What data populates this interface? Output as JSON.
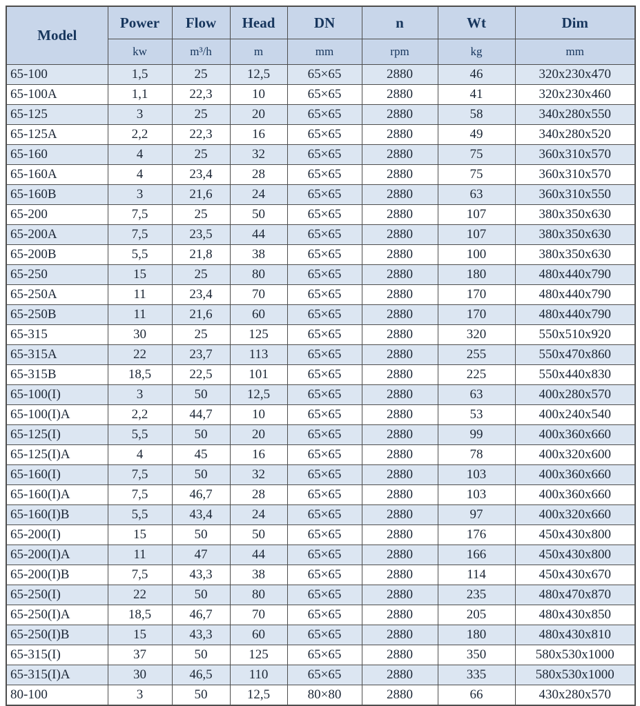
{
  "colors": {
    "header_bg": "#c8d6ea",
    "stripe_bg": "#dce6f2",
    "border": "#4d4d4d",
    "text": "#17365d"
  },
  "table": {
    "columns": [
      {
        "key": "model",
        "label": "Model",
        "unit": ""
      },
      {
        "key": "power",
        "label": "Power",
        "unit": "kw"
      },
      {
        "key": "flow",
        "label": "Flow",
        "unit": "m³/h"
      },
      {
        "key": "head",
        "label": "Head",
        "unit": "m"
      },
      {
        "key": "dn",
        "label": "DN",
        "unit": "mm"
      },
      {
        "key": "n",
        "label": "n",
        "unit": "rpm"
      },
      {
        "key": "wt",
        "label": "Wt",
        "unit": "kg"
      },
      {
        "key": "dim",
        "label": "Dim",
        "unit": "mm"
      }
    ],
    "rows": [
      [
        "65-100",
        "1,5",
        "25",
        "12,5",
        "65×65",
        "2880",
        "46",
        "320x230x470"
      ],
      [
        "65-100A",
        "1,1",
        "22,3",
        "10",
        "65×65",
        "2880",
        "41",
        "320x230x460"
      ],
      [
        "65-125",
        "3",
        "25",
        "20",
        "65×65",
        "2880",
        "58",
        "340x280x550"
      ],
      [
        "65-125A",
        "2,2",
        "22,3",
        "16",
        "65×65",
        "2880",
        "49",
        "340x280x520"
      ],
      [
        "65-160",
        "4",
        "25",
        "32",
        "65×65",
        "2880",
        "75",
        "360x310x570"
      ],
      [
        "65-160A",
        "4",
        "23,4",
        "28",
        "65×65",
        "2880",
        "75",
        "360x310x570"
      ],
      [
        "65-160B",
        "3",
        "21,6",
        "24",
        "65×65",
        "2880",
        "63",
        "360x310x550"
      ],
      [
        "65-200",
        "7,5",
        "25",
        "50",
        "65×65",
        "2880",
        "107",
        "380x350x630"
      ],
      [
        "65-200A",
        "7,5",
        "23,5",
        "44",
        "65×65",
        "2880",
        "107",
        "380x350x630"
      ],
      [
        "65-200B",
        "5,5",
        "21,8",
        "38",
        "65×65",
        "2880",
        "100",
        "380x350x630"
      ],
      [
        "65-250",
        "15",
        "25",
        "80",
        "65×65",
        "2880",
        "180",
        "480x440x790"
      ],
      [
        "65-250A",
        "11",
        "23,4",
        "70",
        "65×65",
        "2880",
        "170",
        "480x440x790"
      ],
      [
        "65-250B",
        "11",
        "21,6",
        "60",
        "65×65",
        "2880",
        "170",
        "480x440x790"
      ],
      [
        "65-315",
        "30",
        "25",
        "125",
        "65×65",
        "2880",
        "320",
        "550x510x920"
      ],
      [
        "65-315A",
        "22",
        "23,7",
        "113",
        "65×65",
        "2880",
        "255",
        "550x470x860"
      ],
      [
        "65-315B",
        "18,5",
        "22,5",
        "101",
        "65×65",
        "2880",
        "225",
        "550x440x830"
      ],
      [
        "65-100(I)",
        "3",
        "50",
        "12,5",
        "65×65",
        "2880",
        "63",
        "400x280x570"
      ],
      [
        "65-100(I)A",
        "2,2",
        "44,7",
        "10",
        "65×65",
        "2880",
        "53",
        "400x240x540"
      ],
      [
        "65-125(I)",
        "5,5",
        "50",
        "20",
        "65×65",
        "2880",
        "99",
        "400x360x660"
      ],
      [
        "65-125(I)A",
        "4",
        "45",
        "16",
        "65×65",
        "2880",
        "78",
        "400x320x600"
      ],
      [
        "65-160(I)",
        "7,5",
        "50",
        "32",
        "65×65",
        "2880",
        "103",
        "400x360x660"
      ],
      [
        "65-160(I)A",
        "7,5",
        "46,7",
        "28",
        "65×65",
        "2880",
        "103",
        "400x360x660"
      ],
      [
        "65-160(I)B",
        "5,5",
        "43,4",
        "24",
        "65×65",
        "2880",
        "97",
        "400x320x660"
      ],
      [
        "65-200(I)",
        "15",
        "50",
        "50",
        "65×65",
        "2880",
        "176",
        "450x430x800"
      ],
      [
        "65-200(I)A",
        "11",
        "47",
        "44",
        "65×65",
        "2880",
        "166",
        "450x430x800"
      ],
      [
        "65-200(I)B",
        "7,5",
        "43,3",
        "38",
        "65×65",
        "2880",
        "114",
        "450x430x670"
      ],
      [
        "65-250(I)",
        "22",
        "50",
        "80",
        "65×65",
        "2880",
        "235",
        "480x470x870"
      ],
      [
        "65-250(I)A",
        "18,5",
        "46,7",
        "70",
        "65×65",
        "2880",
        "205",
        "480x430x850"
      ],
      [
        "65-250(I)B",
        "15",
        "43,3",
        "60",
        "65×65",
        "2880",
        "180",
        "480x430x810"
      ],
      [
        "65-315(I)",
        "37",
        "50",
        "125",
        "65×65",
        "2880",
        "350",
        "580x530x1000"
      ],
      [
        "65-315(I)A",
        "30",
        "46,5",
        "110",
        "65×65",
        "2880",
        "335",
        "580x530x1000"
      ],
      [
        "80-100",
        "3",
        "50",
        "12,5",
        "80×80",
        "2880",
        "66",
        "430x280x570"
      ]
    ]
  }
}
